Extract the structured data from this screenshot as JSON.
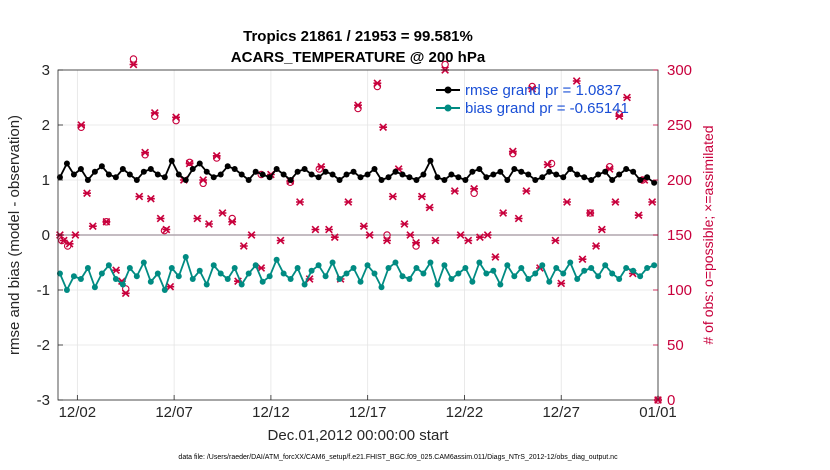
{
  "chart_data": {
    "type": "line",
    "title": "Tropics 21861 / 21953 = 99.581%",
    "subtitle": "ACARS_TEMPERATURE @ 200 hPa",
    "xlabel": "Dec.01,2012 00:00:00 start",
    "ylabel_left": "rmse and bias (model - observation)",
    "ylabel_right": "# of obs: o=possible; ×=assimilated",
    "xlim": [
      0,
      31
    ],
    "ylim_left": [
      -3,
      3
    ],
    "ylim_right": [
      0,
      300
    ],
    "x_ticks": [
      {
        "value": 1.0,
        "label": "12/02"
      },
      {
        "value": 6.0,
        "label": "12/07"
      },
      {
        "value": 11.0,
        "label": "12/12"
      },
      {
        "value": 16.0,
        "label": "12/17"
      },
      {
        "value": 21.0,
        "label": "12/22"
      },
      {
        "value": 26.0,
        "label": "12/27"
      },
      {
        "value": 31.0,
        "label": "01/01"
      }
    ],
    "y_ticks_left": [
      "3",
      "2",
      "1",
      "0",
      "-1",
      "-2",
      "-3"
    ],
    "y_ticks_right": [
      "300",
      "250",
      "200",
      "150",
      "100",
      "50",
      "0"
    ],
    "legend": [
      {
        "label": "rmse grand pr = 1.0837",
        "color": "#000000"
      },
      {
        "label": "bias grand pr = -0.65141",
        "color": "#008b82"
      }
    ],
    "series": [
      {
        "name": "rmse",
        "axis": "left",
        "color": "#000000",
        "values": [
          1.05,
          1.3,
          1.1,
          1.2,
          1.0,
          1.15,
          1.25,
          1.1,
          1.05,
          1.2,
          1.1,
          1.0,
          1.15,
          1.2,
          1.1,
          1.05,
          1.35,
          1.1,
          1.0,
          1.2,
          1.3,
          1.15,
          1.05,
          1.1,
          1.25,
          1.2,
          1.1,
          1.0,
          1.15,
          1.1,
          1.05,
          1.2,
          1.1,
          1.0,
          1.15,
          1.2,
          1.1,
          1.05,
          1.15,
          1.1,
          1.0,
          1.1,
          1.15,
          1.05,
          1.1,
          1.2,
          1.0,
          1.05,
          1.15,
          1.1,
          1.05,
          1.0,
          1.1,
          1.35,
          1.05,
          1.0,
          1.1,
          1.05,
          1.0,
          1.15,
          1.2,
          1.05,
          1.1,
          1.15,
          1.0,
          1.2,
          1.15,
          1.1,
          1.0,
          1.05,
          1.15,
          1.1,
          1.05,
          1.2,
          1.1,
          1.05,
          1.0,
          1.1,
          1.15,
          1.0,
          1.1,
          1.2,
          1.15,
          1.0,
          1.05,
          0.95
        ]
      },
      {
        "name": "bias",
        "axis": "left",
        "color": "#008b82",
        "values": [
          -0.7,
          -1.0,
          -0.75,
          -0.8,
          -0.6,
          -0.95,
          -0.7,
          -0.55,
          -0.8,
          -0.9,
          -0.6,
          -0.75,
          -0.5,
          -0.85,
          -0.7,
          -1.0,
          -0.6,
          -0.75,
          -0.4,
          -0.8,
          -0.65,
          -0.9,
          -0.55,
          -0.7,
          -0.8,
          -0.6,
          -0.9,
          -0.7,
          -0.55,
          -0.85,
          -0.75,
          -0.45,
          -0.7,
          -0.8,
          -0.6,
          -0.9,
          -0.65,
          -0.55,
          -0.75,
          -0.5,
          -0.8,
          -0.7,
          -0.6,
          -0.85,
          -0.55,
          -0.7,
          -0.95,
          -0.6,
          -0.5,
          -0.75,
          -0.8,
          -0.6,
          -0.7,
          -0.5,
          -0.9,
          -0.55,
          -0.8,
          -0.7,
          -0.6,
          -0.85,
          -0.5,
          -0.7,
          -0.65,
          -0.9,
          -0.55,
          -0.75,
          -0.6,
          -0.8,
          -0.7,
          -0.55,
          -0.85,
          -0.6,
          -0.7,
          -0.5,
          -0.8,
          -0.65,
          -0.6,
          -0.75,
          -0.55,
          -0.7,
          -0.8,
          -0.6,
          -0.65,
          -0.75,
          -0.6,
          -0.55
        ]
      },
      {
        "name": "obs possible",
        "axis": "right",
        "marker": "o",
        "color": "#c8003c",
        "points": [
          [
            0.2,
            145
          ],
          [
            0.5,
            140
          ],
          [
            1.2,
            248
          ],
          [
            2.5,
            162
          ],
          [
            3.5,
            101
          ],
          [
            3.9,
            310
          ],
          [
            4.5,
            223
          ],
          [
            5.0,
            258
          ],
          [
            5.5,
            154
          ],
          [
            6.1,
            254
          ],
          [
            6.8,
            216
          ],
          [
            7.5,
            197
          ],
          [
            8.2,
            220
          ],
          [
            9.0,
            165
          ],
          [
            10.5,
            205
          ],
          [
            12.0,
            198
          ],
          [
            13.5,
            210
          ],
          [
            15.5,
            265
          ],
          [
            16.5,
            285
          ],
          [
            17.0,
            150
          ],
          [
            18.5,
            140
          ],
          [
            20.0,
            305
          ],
          [
            21.5,
            188
          ],
          [
            23.5,
            224
          ],
          [
            24.5,
            285
          ],
          [
            25.5,
            215
          ],
          [
            27.5,
            170
          ],
          [
            28.5,
            212
          ],
          [
            29.0,
            260
          ],
          [
            30.2,
            200
          ],
          [
            31.0,
            0
          ]
        ]
      },
      {
        "name": "obs assimilated",
        "axis": "right",
        "marker": "x",
        "color": "#c8003c",
        "points": [
          [
            0.1,
            150
          ],
          [
            0.3,
            145
          ],
          [
            0.6,
            142
          ],
          [
            0.9,
            150
          ],
          [
            1.2,
            250
          ],
          [
            1.5,
            188
          ],
          [
            1.8,
            158
          ],
          [
            2.5,
            162
          ],
          [
            3.0,
            118
          ],
          [
            3.3,
            108
          ],
          [
            3.5,
            97
          ],
          [
            3.9,
            305
          ],
          [
            4.2,
            185
          ],
          [
            4.5,
            225
          ],
          [
            4.8,
            183
          ],
          [
            5.0,
            261
          ],
          [
            5.3,
            165
          ],
          [
            5.6,
            155
          ],
          [
            5.8,
            103
          ],
          [
            6.1,
            257
          ],
          [
            6.5,
            200
          ],
          [
            6.8,
            215
          ],
          [
            7.2,
            165
          ],
          [
            7.5,
            200
          ],
          [
            7.8,
            160
          ],
          [
            8.2,
            222
          ],
          [
            8.5,
            170
          ],
          [
            9.0,
            162
          ],
          [
            9.3,
            108
          ],
          [
            9.6,
            140
          ],
          [
            10.0,
            150
          ],
          [
            10.5,
            120
          ],
          [
            11.0,
            205
          ],
          [
            11.5,
            145
          ],
          [
            12.0,
            199
          ],
          [
            12.5,
            180
          ],
          [
            13.0,
            110
          ],
          [
            13.3,
            155
          ],
          [
            13.6,
            212
          ],
          [
            14.0,
            155
          ],
          [
            14.3,
            148
          ],
          [
            14.6,
            110
          ],
          [
            15.0,
            180
          ],
          [
            15.5,
            268
          ],
          [
            15.8,
            158
          ],
          [
            16.1,
            150
          ],
          [
            16.5,
            288
          ],
          [
            16.8,
            248
          ],
          [
            17.0,
            145
          ],
          [
            17.3,
            185
          ],
          [
            17.6,
            210
          ],
          [
            17.9,
            160
          ],
          [
            18.2,
            150
          ],
          [
            18.5,
            143
          ],
          [
            18.8,
            185
          ],
          [
            19.2,
            175
          ],
          [
            19.5,
            145
          ],
          [
            20.0,
            300
          ],
          [
            20.5,
            190
          ],
          [
            20.8,
            150
          ],
          [
            21.2,
            145
          ],
          [
            21.5,
            192
          ],
          [
            21.8,
            148
          ],
          [
            22.2,
            150
          ],
          [
            22.6,
            130
          ],
          [
            23.0,
            170
          ],
          [
            23.5,
            226
          ],
          [
            23.8,
            165
          ],
          [
            24.2,
            190
          ],
          [
            24.5,
            283
          ],
          [
            24.9,
            120
          ],
          [
            25.3,
            214
          ],
          [
            25.7,
            145
          ],
          [
            26.0,
            106
          ],
          [
            26.3,
            180
          ],
          [
            26.8,
            290
          ],
          [
            27.1,
            128
          ],
          [
            27.5,
            170
          ],
          [
            27.8,
            140
          ],
          [
            28.1,
            155
          ],
          [
            28.5,
            210
          ],
          [
            28.8,
            180
          ],
          [
            29.0,
            258
          ],
          [
            29.4,
            275
          ],
          [
            29.7,
            115
          ],
          [
            30.0,
            168
          ],
          [
            30.3,
            200
          ],
          [
            30.7,
            180
          ],
          [
            31.0,
            0
          ]
        ]
      }
    ]
  },
  "footer": "data file: /Users/raeder/DAI/ATM_forcXX/CAM6_setup/f.e21.FHIST_BGC.f09_025.CAM6assim.011/Diags_NTrS_2012-12/obs_diag_output.nc"
}
